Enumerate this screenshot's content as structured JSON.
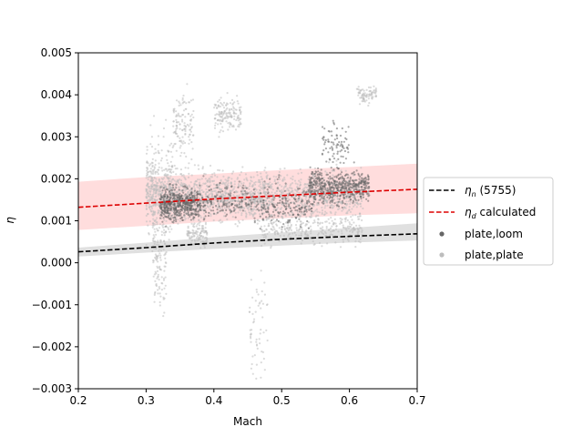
{
  "chart_data": {
    "type": "scatter",
    "xlabel": "Mach",
    "ylabel": "η",
    "xlim": [
      0.2,
      0.7
    ],
    "ylim": [
      -0.003,
      0.005
    ],
    "x_ticks": [
      "0.2",
      "0.3",
      "0.4",
      "0.5",
      "0.6",
      "0.7"
    ],
    "y_ticks": [
      "−0.003",
      "−0.002",
      "−0.001",
      "0.000",
      "0.001",
      "0.002",
      "0.003",
      "0.004",
      "0.005"
    ],
    "grid": false,
    "legend_position": "right",
    "legend": {
      "eta_n_prefix": "η",
      "eta_n_sub": "n",
      "eta_n_suffix": " (5755)",
      "eta_d_prefix": "η",
      "eta_d_sub": "d",
      "eta_d_suffix": " calculated",
      "plate_loom": "plate,loom",
      "plate_plate": "plate,plate"
    },
    "lines": [
      {
        "id": "eta_n",
        "color": "#000000",
        "style": "dashed",
        "x": [
          0.2,
          0.3,
          0.4,
          0.5,
          0.6,
          0.7
        ],
        "y": [
          0.00026,
          0.00036,
          0.00047,
          0.00056,
          0.00063,
          0.00069
        ],
        "band_lower": [
          0.00015,
          0.00024,
          0.00033,
          0.00041,
          0.00048,
          0.00053
        ],
        "band_upper": [
          0.00036,
          0.00048,
          0.00061,
          0.00072,
          0.00083,
          0.00094
        ],
        "band_color": "#bbbbbb"
      },
      {
        "id": "eta_d",
        "color": "#dd0000",
        "style": "dashed",
        "x": [
          0.2,
          0.3,
          0.4,
          0.5,
          0.6,
          0.7
        ],
        "y": [
          0.00132,
          0.00142,
          0.00152,
          0.0016,
          0.00168,
          0.00175
        ],
        "band_lower": [
          0.00078,
          0.00088,
          0.00098,
          0.00106,
          0.00113,
          0.00118
        ],
        "band_upper": [
          0.00193,
          0.00204,
          0.00212,
          0.00221,
          0.00228,
          0.00236
        ],
        "band_color": "#ffb3b3"
      }
    ],
    "scatter_series": [
      {
        "id": "plate_plate",
        "color": "#bdbdbd",
        "clusters": [
          {
            "x_range": [
              0.3,
              0.48
            ],
            "y_center": 0.0016,
            "y_spread": 0.0006,
            "count": 1100
          },
          {
            "x_range": [
              0.3,
              0.34
            ],
            "y_center": 0.0018,
            "y_spread": 0.0012,
            "count": 250
          },
          {
            "x_range": [
              0.31,
              0.33
            ],
            "y_center": 0.0001,
            "y_spread": 0.0012,
            "count": 120
          },
          {
            "x_range": [
              0.4,
              0.44
            ],
            "y_center": 0.0035,
            "y_spread": 0.0004,
            "count": 150
          },
          {
            "x_range": [
              0.34,
              0.37
            ],
            "y_center": 0.0033,
            "y_spread": 0.0007,
            "count": 120
          },
          {
            "x_range": [
              0.48,
              0.62
            ],
            "y_center": 0.0016,
            "y_spread": 0.0006,
            "count": 600
          },
          {
            "x_range": [
              0.47,
              0.62
            ],
            "y_center": 0.0008,
            "y_spread": 0.0004,
            "count": 300
          },
          {
            "x_range": [
              0.36,
              0.39
            ],
            "y_center": 0.0007,
            "y_spread": 0.0003,
            "count": 120
          },
          {
            "x_range": [
              0.61,
              0.64
            ],
            "y_center": 0.004,
            "y_spread": 0.0002,
            "count": 80
          },
          {
            "x_range": [
              0.45,
              0.48
            ],
            "y_center": -0.0015,
            "y_spread": 0.0012,
            "count": 60
          }
        ]
      },
      {
        "id": "plate_loom",
        "color": "#666666",
        "clusters": [
          {
            "x_range": [
              0.32,
              0.38
            ],
            "y_center": 0.0014,
            "y_spread": 0.0004,
            "count": 500
          },
          {
            "x_range": [
              0.38,
              0.46
            ],
            "y_center": 0.0015,
            "y_spread": 0.0004,
            "count": 150
          },
          {
            "x_range": [
              0.54,
              0.63
            ],
            "y_center": 0.0018,
            "y_spread": 0.0004,
            "count": 500
          },
          {
            "x_range": [
              0.46,
              0.55
            ],
            "y_center": 0.0014,
            "y_spread": 0.0005,
            "count": 200
          },
          {
            "x_range": [
              0.56,
              0.6
            ],
            "y_center": 0.0028,
            "y_spread": 0.0006,
            "count": 80
          }
        ]
      }
    ]
  }
}
